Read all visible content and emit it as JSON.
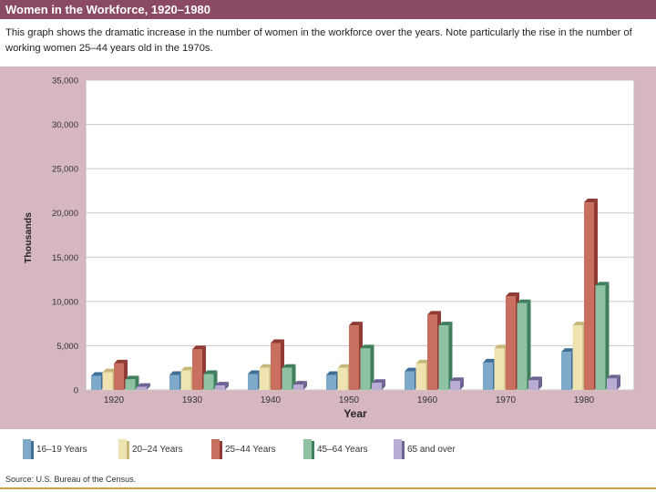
{
  "header": {
    "title": "Women in the Workforce, 1920–1980",
    "caption": "This graph shows the dramatic increase in the number of women in the workforce over the years. Note particularly the rise in the number of working women 25–44 years old in the 1970s."
  },
  "footer": {
    "source": "Source: U.S. Bureau of the Census."
  },
  "chart_data": {
    "type": "bar",
    "title": "Women in the Workforce, 1920–1980",
    "xlabel": "Year",
    "ylabel": "Thousands",
    "ylim": [
      0,
      35000
    ],
    "yticks": [
      0,
      5000,
      10000,
      15000,
      20000,
      25000,
      30000,
      35000
    ],
    "ytick_labels": [
      "0",
      "5,000",
      "10,000",
      "15,000",
      "20,000",
      "25,000",
      "30,000",
      "35,000"
    ],
    "grid": true,
    "legend_position": "bottom",
    "categories": [
      "1920",
      "1930",
      "1940",
      "1950",
      "1960",
      "1970",
      "1980"
    ],
    "series": [
      {
        "name": "16–19 Years",
        "color": "#7fa9c9",
        "side": "#3f6f96",
        "values": [
          1600,
          1700,
          1800,
          1700,
          2100,
          3100,
          4300
        ]
      },
      {
        "name": "20–24 Years",
        "color": "#efe3b2",
        "side": "#c7b77a",
        "values": [
          2000,
          2200,
          2500,
          2500,
          3000,
          4700,
          7300
        ]
      },
      {
        "name": "25–44 Years",
        "color": "#c96f5f",
        "side": "#8f3a33",
        "values": [
          3000,
          4600,
          5300,
          7300,
          8500,
          10600,
          21200
        ]
      },
      {
        "name": "45–64 Years",
        "color": "#8fc2a5",
        "side": "#3f7f5c",
        "values": [
          1200,
          1800,
          2500,
          4700,
          7300,
          9800,
          11800
        ]
      },
      {
        "name": "65 and over",
        "color": "#b9add3",
        "side": "#6f6394",
        "values": [
          350,
          500,
          600,
          800,
          1000,
          1100,
          1300
        ]
      }
    ]
  }
}
